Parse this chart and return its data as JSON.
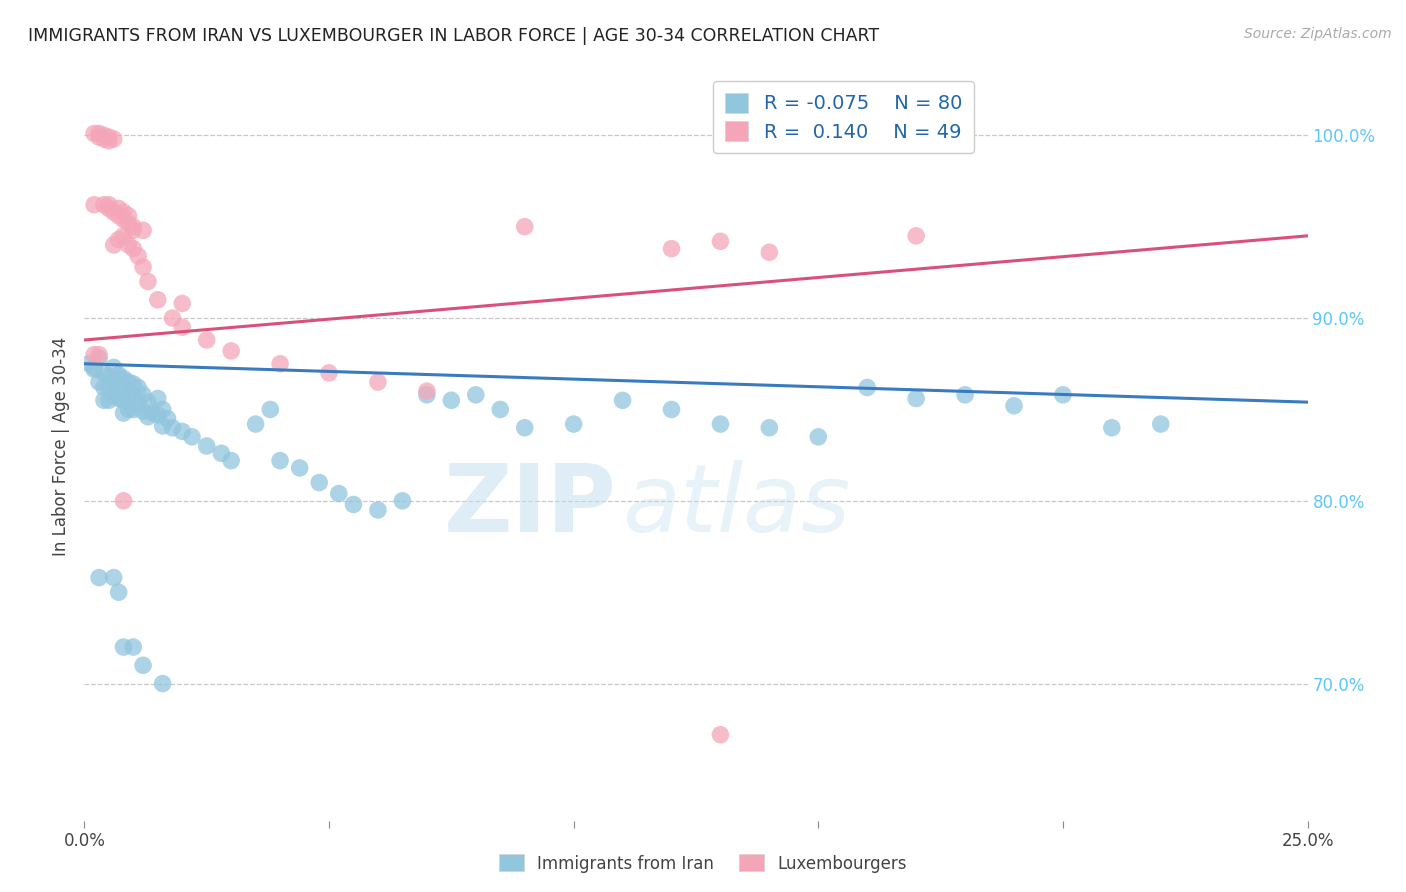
{
  "title": "IMMIGRANTS FROM IRAN VS LUXEMBOURGER IN LABOR FORCE | AGE 30-34 CORRELATION CHART",
  "source_text": "Source: ZipAtlas.com",
  "ylabel": "In Labor Force | Age 30-34",
  "legend_blue_label": "Immigrants from Iran",
  "legend_pink_label": "Luxembourgers",
  "blue_color": "#92c5de",
  "pink_color": "#f4a6b8",
  "blue_line_color": "#3a7bbf",
  "pink_line_color": "#d9517a",
  "title_color": "#222222",
  "right_axis_color": "#5bc8fa",
  "grid_color": "#c8c8c8",
  "xlim": [
    0.0,
    0.25
  ],
  "ylim": [
    0.625,
    1.035
  ],
  "blue_trend": [
    0.875,
    0.854
  ],
  "pink_trend": [
    0.888,
    0.945
  ],
  "watermark_zip": "ZIP",
  "watermark_atlas": "atlas",
  "right_yticks": [
    1.0,
    0.9,
    0.8,
    0.7
  ],
  "right_ylabels": [
    "100.0%",
    "90.0%",
    "80.0%",
    "70.0%"
  ],
  "blue_scatter_x": [
    0.001,
    0.002,
    0.003,
    0.003,
    0.004,
    0.004,
    0.004,
    0.005,
    0.005,
    0.005,
    0.006,
    0.006,
    0.006,
    0.007,
    0.007,
    0.007,
    0.008,
    0.008,
    0.008,
    0.008,
    0.009,
    0.009,
    0.009,
    0.01,
    0.01,
    0.01,
    0.011,
    0.011,
    0.012,
    0.012,
    0.013,
    0.013,
    0.014,
    0.015,
    0.015,
    0.016,
    0.016,
    0.017,
    0.018,
    0.02,
    0.022,
    0.025,
    0.028,
    0.03,
    0.035,
    0.038,
    0.04,
    0.044,
    0.048,
    0.052,
    0.055,
    0.06,
    0.065,
    0.07,
    0.075,
    0.08,
    0.085,
    0.09,
    0.1,
    0.11,
    0.12,
    0.13,
    0.14,
    0.15,
    0.16,
    0.17,
    0.18,
    0.19,
    0.2,
    0.21,
    0.22,
    0.155,
    0.002,
    0.003,
    0.006,
    0.007,
    0.008,
    0.01,
    0.012,
    0.016
  ],
  "blue_scatter_y": [
    0.875,
    0.872,
    0.878,
    0.865,
    0.87,
    0.862,
    0.855,
    0.868,
    0.862,
    0.855,
    0.873,
    0.866,
    0.858,
    0.869,
    0.862,
    0.856,
    0.867,
    0.86,
    0.855,
    0.848,
    0.865,
    0.857,
    0.85,
    0.864,
    0.858,
    0.85,
    0.862,
    0.853,
    0.858,
    0.849,
    0.854,
    0.846,
    0.848,
    0.856,
    0.847,
    0.85,
    0.841,
    0.845,
    0.84,
    0.838,
    0.835,
    0.83,
    0.826,
    0.822,
    0.842,
    0.85,
    0.822,
    0.818,
    0.81,
    0.804,
    0.798,
    0.795,
    0.8,
    0.858,
    0.855,
    0.858,
    0.85,
    0.84,
    0.842,
    0.855,
    0.85,
    0.842,
    0.84,
    0.835,
    0.862,
    0.856,
    0.858,
    0.852,
    0.858,
    0.84,
    0.842,
    1.002,
    0.873,
    0.758,
    0.758,
    0.75,
    0.72,
    0.72,
    0.71,
    0.7
  ],
  "pink_scatter_x": [
    0.002,
    0.003,
    0.003,
    0.004,
    0.004,
    0.005,
    0.005,
    0.005,
    0.006,
    0.006,
    0.007,
    0.007,
    0.008,
    0.008,
    0.009,
    0.009,
    0.01,
    0.01,
    0.011,
    0.012,
    0.013,
    0.015,
    0.018,
    0.02,
    0.025,
    0.03,
    0.04,
    0.05,
    0.06,
    0.07,
    0.09,
    0.12,
    0.17,
    0.002,
    0.004,
    0.005,
    0.006,
    0.007,
    0.008,
    0.009,
    0.01,
    0.012,
    0.02,
    0.13,
    0.14,
    0.002,
    0.003,
    0.008,
    0.13
  ],
  "pink_scatter_y": [
    1.001,
    1.001,
    0.999,
    1.0,
    0.998,
    0.999,
    0.997,
    0.962,
    0.998,
    0.94,
    0.96,
    0.943,
    0.958,
    0.945,
    0.956,
    0.94,
    0.948,
    0.938,
    0.934,
    0.928,
    0.92,
    0.91,
    0.9,
    0.895,
    0.888,
    0.882,
    0.875,
    0.87,
    0.865,
    0.86,
    0.95,
    0.938,
    0.945,
    0.962,
    0.962,
    0.96,
    0.958,
    0.956,
    0.954,
    0.952,
    0.95,
    0.948,
    0.908,
    0.942,
    0.936,
    0.88,
    0.88,
    0.8,
    0.672
  ]
}
